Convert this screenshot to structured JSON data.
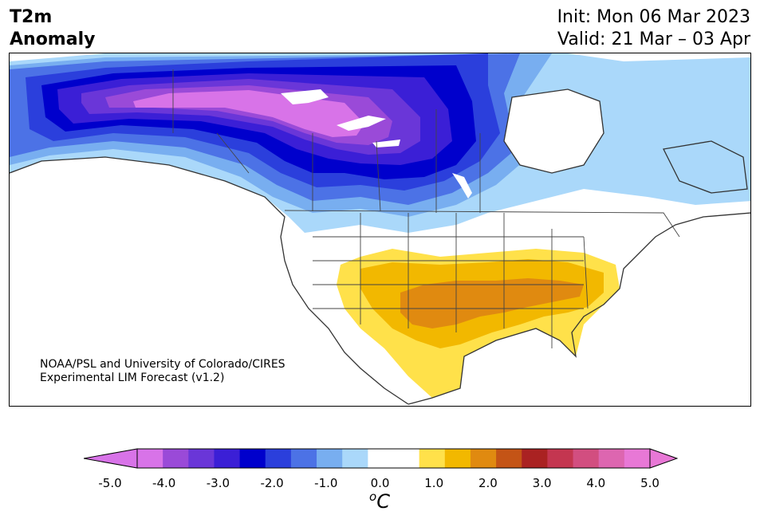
{
  "header": {
    "title_line1": "T2m",
    "title_line2": "Anomaly",
    "init": "Init: Mon 06 Mar 2023",
    "valid": "Valid: 21 Mar – 03 Apr"
  },
  "credit": {
    "line1": "NOAA/PSL and University of Colorado/CIRES",
    "line2": "Experimental LIM Forecast (v1.2)"
  },
  "colorbar": {
    "unit_base": "C",
    "unit_sup": "o",
    "ticks": [
      "-5.0",
      "-4.0",
      "-3.0",
      "-2.0",
      "-1.0",
      "0.0",
      "1.0",
      "2.0",
      "3.0",
      "4.0",
      "5.0"
    ],
    "colors": [
      "#d873e8",
      "#9a4ad8",
      "#6a36d8",
      "#3b1fd6",
      "#0000cc",
      "#2b3fdc",
      "#4c72e6",
      "#78aef0",
      "#aad8fa",
      "#ffffff",
      "#ffffff",
      "#ffe14a",
      "#f2b800",
      "#e08a10",
      "#c45416",
      "#aa2222",
      "#c43650",
      "#d24e80",
      "#dd66b0",
      "#e878d6"
    ],
    "low_extend_color": "#d873e8",
    "high_extend_color": "#e878d6"
  },
  "map": {
    "ocean_color": "#ffffff",
    "coast_color": "#333333"
  }
}
